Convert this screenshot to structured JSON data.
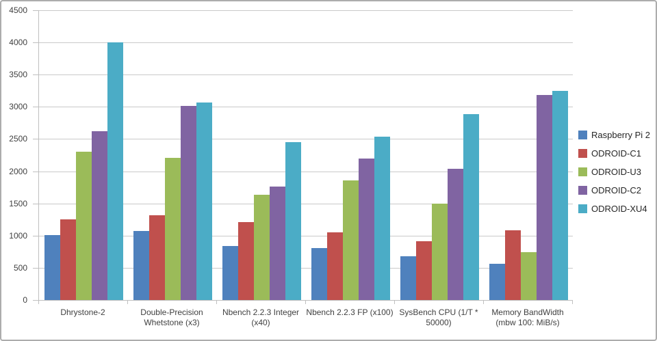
{
  "chart_data": {
    "type": "bar",
    "title": "",
    "categories": [
      "Dhrystone-2",
      "Double-Precision Whetstone (x3)",
      "Nbench 2.2.3 Integer (x40)",
      "Nbench 2.2.3 FP (x100)",
      "SysBench CPU (1/T * 50000)",
      "Memory BandWidth (mbw 100: MiB/s)"
    ],
    "series": [
      {
        "name": "Raspberry Pi 2",
        "color": "#4F81BD",
        "values": [
          1010,
          1075,
          840,
          810,
          675,
          560
        ]
      },
      {
        "name": "ODROID-C1",
        "color": "#C0504D",
        "values": [
          1250,
          1320,
          1210,
          1050,
          910,
          1080
        ]
      },
      {
        "name": "ODROID-U3",
        "color": "#9BBB59",
        "values": [
          2300,
          2210,
          1640,
          1860,
          1500,
          740
        ]
      },
      {
        "name": "ODROID-C2",
        "color": "#8064A2",
        "values": [
          2620,
          3010,
          1760,
          2200,
          2040,
          3180
        ]
      },
      {
        "name": "ODROID-XU4",
        "color": "#4BACC6",
        "values": [
          4000,
          3070,
          2450,
          2540,
          2890,
          3250
        ]
      }
    ],
    "xlabel": "",
    "ylabel": "",
    "ylim": [
      0,
      4500
    ],
    "yticks": [
      0,
      500,
      1000,
      1500,
      2000,
      2500,
      3000,
      3500,
      4000,
      4500
    ],
    "grid": true,
    "legend_position": "right",
    "colors": {
      "gridline": "#C9C9C9",
      "axis_line": "#BFBFBF",
      "tick_text": "#3F3F3F",
      "legend_text": "#262626",
      "frame_border": "#ACACAC",
      "background": "#FFFFFF"
    }
  }
}
